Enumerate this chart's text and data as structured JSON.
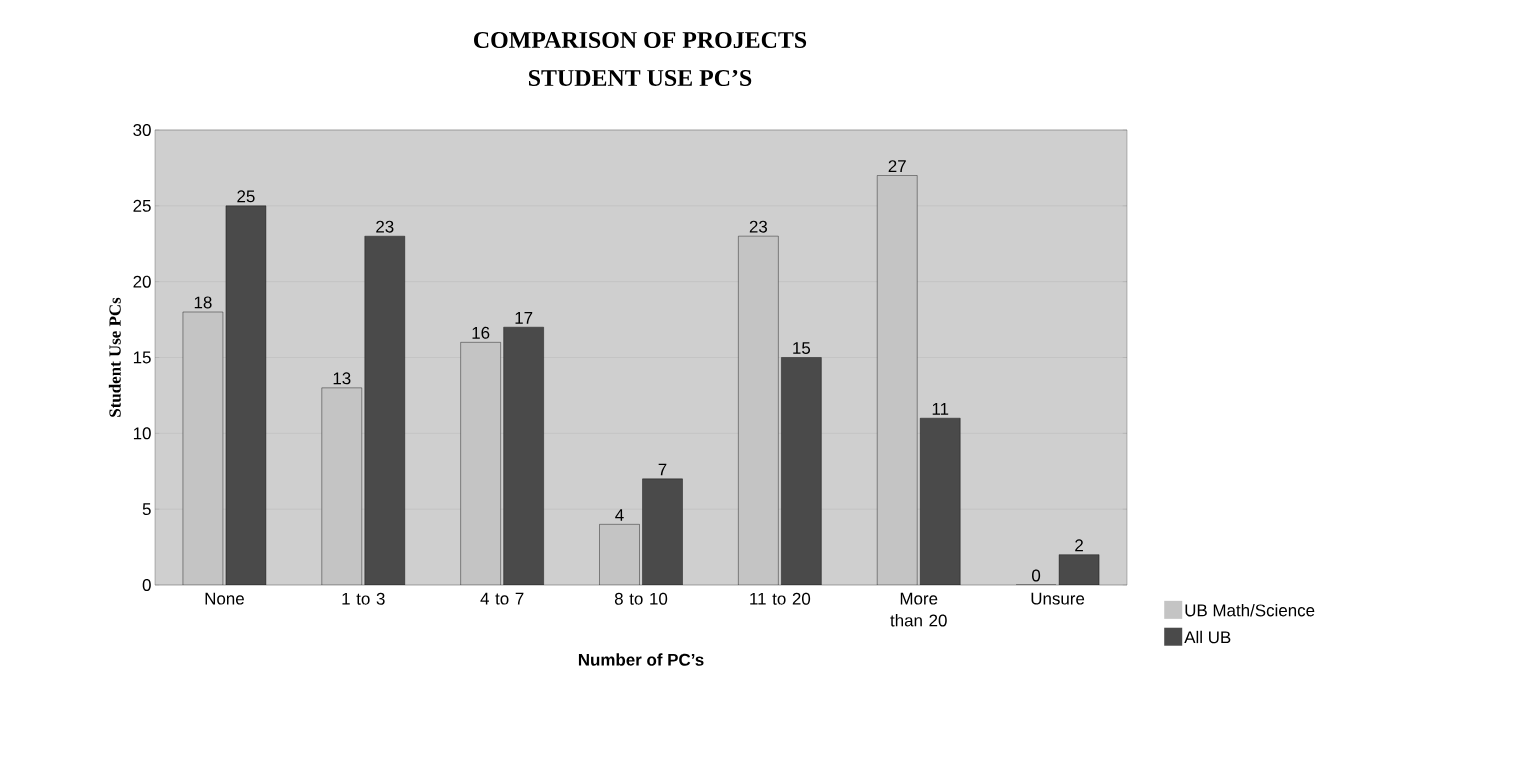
{
  "chart_data": {
    "type": "bar",
    "title": "COMPARISON OF PROJECTS",
    "subtitle": "STUDENT USE PC’S",
    "xlabel": "Number of PC’s",
    "ylabel": "Student Use PCs",
    "categories": [
      "None",
      "1 to 3",
      "4 to 7",
      "8 to 10",
      "11 to 20",
      "More than 20",
      "Unsure"
    ],
    "series": [
      {
        "name": "UB Math/Science",
        "color": "#c4c4c4",
        "values": [
          18,
          13,
          16,
          4,
          23,
          27,
          0
        ]
      },
      {
        "name": "All UB",
        "color": "#4a4a4a",
        "values": [
          25,
          23,
          17,
          7,
          15,
          11,
          2
        ]
      }
    ],
    "ylim": [
      0,
      30
    ],
    "yticks": [
      0,
      5,
      10,
      15,
      20,
      25,
      30
    ],
    "grid": "y",
    "legend": "right",
    "data_labels": true
  }
}
